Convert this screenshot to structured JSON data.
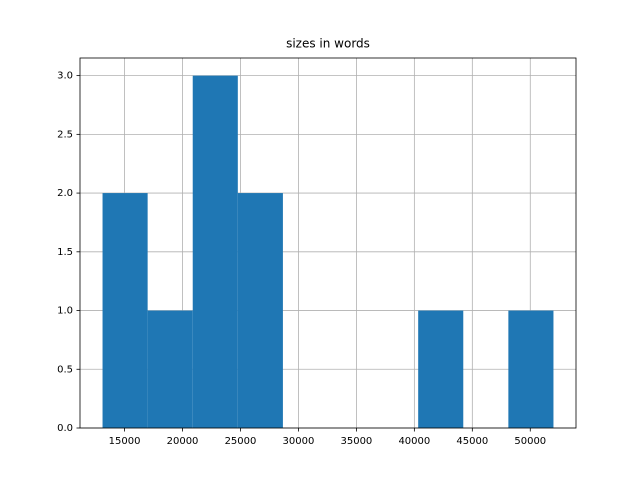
{
  "chart_data": {
    "type": "histogram",
    "title": "sizes in words",
    "bins": [
      13100,
      16990,
      20880,
      24770,
      28660,
      32550,
      36440,
      40330,
      44220,
      48110,
      52000
    ],
    "values": [
      2,
      1,
      3,
      2,
      0,
      0,
      0,
      1,
      0,
      1
    ],
    "color": "#1f77b4",
    "xlim": [
      11155,
      53945
    ],
    "xticks": [
      15000,
      20000,
      25000,
      30000,
      35000,
      40000,
      45000,
      50000
    ],
    "ylim": [
      0,
      3.15
    ],
    "yticks": [
      {
        "value": 0,
        "label": "0.0"
      },
      {
        "value": 0.5,
        "label": "0.5"
      },
      {
        "value": 1,
        "label": "1.0"
      },
      {
        "value": 1.5,
        "label": "1.5"
      },
      {
        "value": 2,
        "label": "2.0"
      },
      {
        "value": 2.5,
        "label": "2.5"
      },
      {
        "value": 3,
        "label": "3.0"
      }
    ],
    "grid": true
  }
}
